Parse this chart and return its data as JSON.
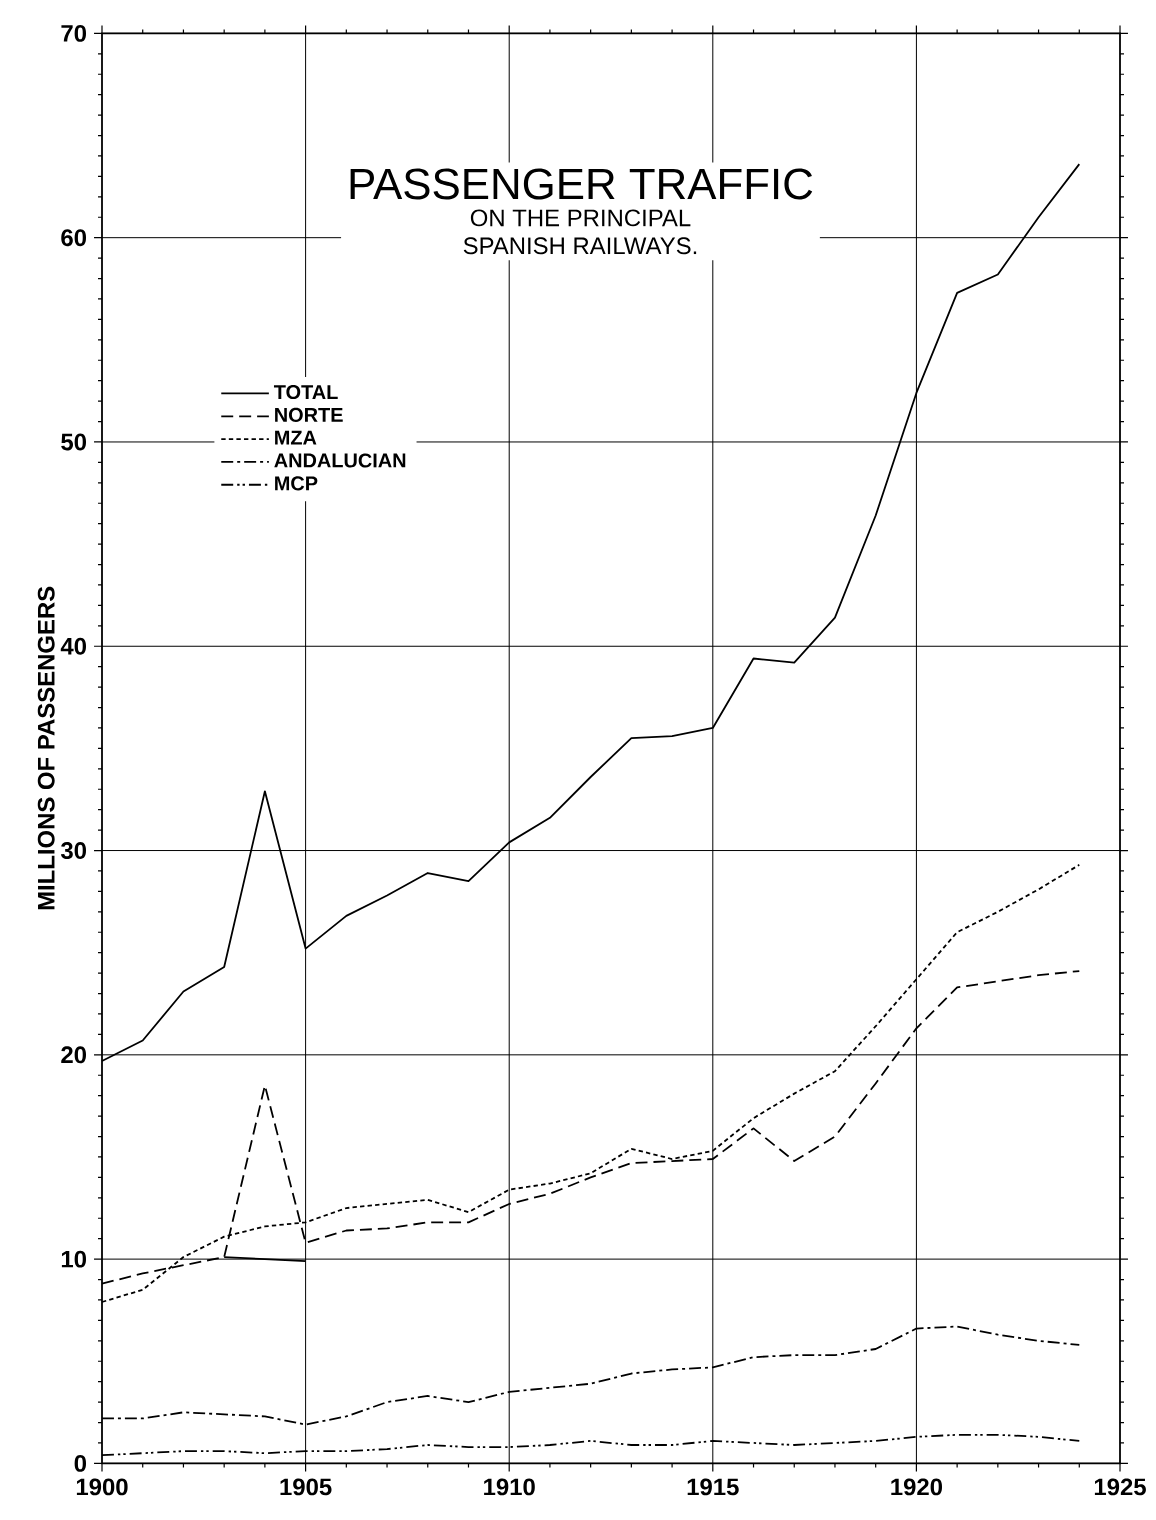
{
  "chart_data": {
    "type": "line",
    "title": "PASSENGER TRAFFIC",
    "subtitle": "ON THE PRINCIPAL SPANISH RAILWAYS.",
    "ylabel": "MILLIONS OF PASSENGERS",
    "x": [
      1900,
      1901,
      1902,
      1903,
      1904,
      1905,
      1906,
      1907,
      1908,
      1909,
      1910,
      1911,
      1912,
      1913,
      1914,
      1915,
      1916,
      1917,
      1918,
      1919,
      1920,
      1921,
      1922,
      1923,
      1924
    ],
    "series": [
      {
        "name": "TOTAL",
        "color": "#000000",
        "line_style": "solid",
        "values": [
          19.7,
          20.7,
          23.1,
          24.3,
          32.9,
          25.2,
          26.8,
          27.8,
          28.9,
          28.5,
          30.4,
          31.6,
          33.6,
          35.5,
          35.6,
          36.0,
          39.4,
          39.2,
          41.4,
          46.4,
          52.4,
          57.3,
          58.2,
          61.0,
          63.6
        ]
      },
      {
        "name": "NORTE",
        "color": "#000000",
        "line_style": "dashed",
        "values": [
          8.8,
          9.3,
          9.7,
          10.1,
          18.5,
          10.8,
          11.4,
          11.5,
          11.8,
          11.8,
          12.7,
          13.2,
          14.0,
          14.7,
          14.8,
          14.9,
          16.4,
          14.8,
          16.0,
          18.6,
          21.3,
          23.3,
          23.6,
          23.9,
          24.1
        ]
      },
      {
        "name": "MZA",
        "color": "#000000",
        "line_style": "dotted",
        "values": [
          7.9,
          8.5,
          10.1,
          11.1,
          11.6,
          11.8,
          12.5,
          12.7,
          12.9,
          12.3,
          13.4,
          13.7,
          14.2,
          15.4,
          14.9,
          15.3,
          16.9,
          18.1,
          19.2,
          21.4,
          23.7,
          26.0,
          27.0,
          28.1,
          29.3
        ]
      },
      {
        "name": "ANDALUCIAN",
        "color": "#000000",
        "line_style": "dashdot",
        "values": [
          2.2,
          2.2,
          2.5,
          2.4,
          2.3,
          1.9,
          2.3,
          3.0,
          3.3,
          3.0,
          3.5,
          3.7,
          3.9,
          4.4,
          4.6,
          4.7,
          5.2,
          5.3,
          5.3,
          5.6,
          6.6,
          6.7,
          6.3,
          6.0,
          5.8
        ]
      },
      {
        "name": "MCP",
        "color": "#000000",
        "line_style": "dashdotdot",
        "values": [
          0.4,
          0.5,
          0.6,
          0.6,
          0.5,
          0.6,
          0.6,
          0.7,
          0.9,
          0.8,
          0.8,
          0.9,
          1.1,
          0.9,
          0.9,
          1.1,
          1.0,
          0.9,
          1.0,
          1.1,
          1.3,
          1.4,
          1.4,
          1.3,
          1.1
        ]
      },
      {
        "color": "#000000",
        "line_style": "solid",
        "x": [
          1903,
          1904,
          1905
        ],
        "values": [
          10.1,
          10.0,
          9.9
        ]
      }
    ],
    "xlim": [
      1900,
      1925
    ],
    "xticks": [
      1900,
      1905,
      1910,
      1915,
      1920,
      1925
    ],
    "ylim": [
      0,
      70
    ],
    "yticks": [
      0,
      10,
      20,
      30,
      40,
      50,
      60,
      70
    ],
    "grid": true,
    "legend": "top left"
  }
}
